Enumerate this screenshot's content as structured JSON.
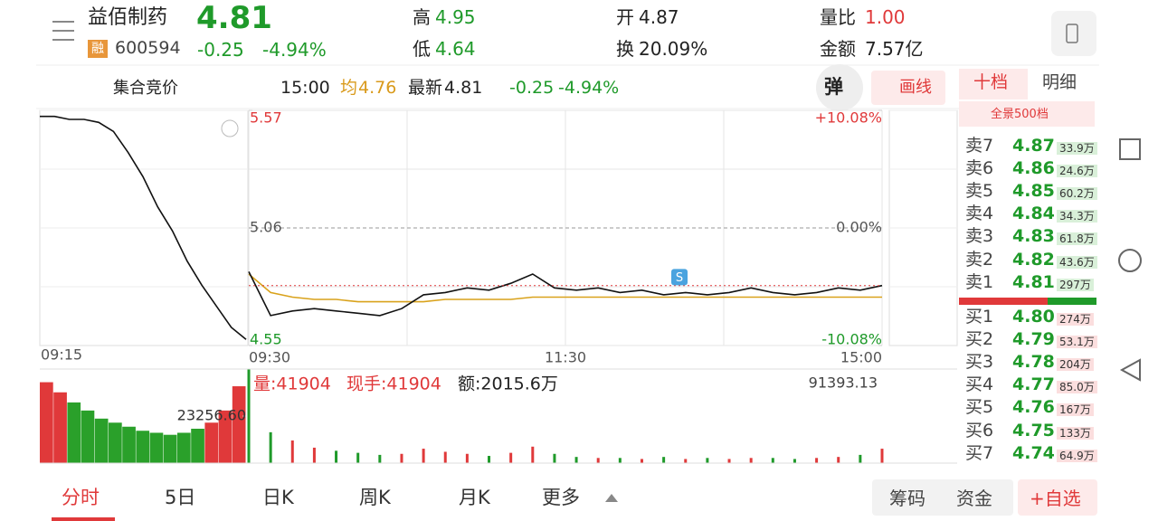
{
  "header": {
    "name": "益佰制药",
    "price": "4.81",
    "badge": "融",
    "code": "600594",
    "change": "-0.25",
    "change_pct": "-4.94%",
    "high_label": "高",
    "high": "4.95",
    "low_label": "低",
    "low": "4.64",
    "open_label": "开",
    "open": "4.87",
    "turnover_label": "换",
    "turnover": "20.09%",
    "vol_ratio_label": "量比",
    "vol_ratio": "1.00",
    "amount_label": "金额",
    "amount": "7.57亿"
  },
  "toolbar": {
    "label": "集合竞价",
    "time": "15:00",
    "avg_label": "均",
    "avg": "4.76",
    "latest_label": "最新",
    "latest": "4.81",
    "change": "-0.25",
    "change_pct": "-4.94%",
    "popup": "弹",
    "draw": "画线"
  },
  "chart_data": {
    "type": "line",
    "series": [
      {
        "name": "price",
        "color": "#111111",
        "values": [
          4.87,
          4.68,
          4.7,
          4.71,
          4.7,
          4.69,
          4.68,
          4.71,
          4.77,
          4.78,
          4.8,
          4.79,
          4.82,
          4.86,
          4.8,
          4.79,
          4.8,
          4.78,
          4.79,
          4.77,
          4.78,
          4.77,
          4.78,
          4.8,
          4.78,
          4.77,
          4.78,
          4.8,
          4.79,
          4.81
        ]
      },
      {
        "name": "avg",
        "color": "#d9a21b",
        "values": [
          4.86,
          4.78,
          4.76,
          4.75,
          4.75,
          4.74,
          4.74,
          4.74,
          4.74,
          4.75,
          4.75,
          4.75,
          4.75,
          4.76,
          4.76,
          4.76,
          4.76,
          4.76,
          4.76,
          4.76,
          4.76,
          4.76,
          4.76,
          4.76,
          4.76,
          4.76,
          4.76,
          4.76,
          4.76,
          4.76
        ]
      }
    ],
    "ylim": [
      4.55,
      5.57
    ],
    "yticks": [
      4.55,
      5.06,
      5.57
    ],
    "y2lim": [
      -10.08,
      10.08
    ],
    "y2ticks": [
      {
        "value": -10.08,
        "label": "-10.08%"
      },
      {
        "value": 0,
        "label": "0.00%"
      },
      {
        "value": 10.08,
        "label": "+10.08%"
      }
    ],
    "time_labels": [
      "09:30",
      "11:30",
      "15:00"
    ],
    "auction_time": "09:15",
    "auction": {
      "values": [
        5.6,
        5.6,
        5.59,
        5.59,
        5.58,
        5.55,
        5.48,
        5.4,
        5.3,
        5.22,
        5.12,
        5.04,
        4.97,
        4.9,
        4.86
      ],
      "ylim": [
        4.84,
        5.62
      ]
    },
    "volume": {
      "values": [
        91393,
        30000,
        22000,
        15000,
        12000,
        10000,
        8000,
        9000,
        14000,
        11000,
        9000,
        7000,
        10000,
        16000,
        9000,
        6000,
        5000,
        5000,
        4000,
        6000,
        4000,
        5000,
        4000,
        5000,
        5000,
        4000,
        5000,
        6000,
        8000,
        14000
      ],
      "ylim": [
        0,
        91393.13
      ],
      "yticks": [
        91393.13
      ]
    },
    "auction_volume": {
      "values": [
        40000,
        35000,
        30000,
        26000,
        22000,
        20000,
        18000,
        16000,
        15000,
        14000,
        15000,
        17000,
        20000,
        26000,
        38000
      ],
      "ylim": [
        0,
        46513.2
      ],
      "yticks": [
        {
          "value": 23256.6,
          "label": "23256.60"
        }
      ]
    },
    "volume_info": [
      "量:41904",
      "现手:41904",
      "额:2015.6万"
    ],
    "signal": "S"
  },
  "order_book": {
    "tabs": [
      "十档",
      "明细"
    ],
    "panorama": "全景500档",
    "sell": [
      [
        "卖7",
        "4.87",
        "33.9万"
      ],
      [
        "卖6",
        "4.86",
        "24.6万"
      ],
      [
        "卖5",
        "4.85",
        "60.2万"
      ],
      [
        "卖4",
        "4.84",
        "34.3万"
      ],
      [
        "卖3",
        "4.83",
        "61.8万"
      ],
      [
        "卖2",
        "4.82",
        "43.6万"
      ],
      [
        "卖1",
        "4.81",
        "297万"
      ]
    ],
    "buy": [
      [
        "买1",
        "4.80",
        "274万"
      ],
      [
        "买2",
        "4.79",
        "53.1万"
      ],
      [
        "买3",
        "4.78",
        "204万"
      ],
      [
        "买4",
        "4.77",
        "85.0万"
      ],
      [
        "买5",
        "4.76",
        "167万"
      ],
      [
        "买6",
        "4.75",
        "133万"
      ],
      [
        "买7",
        "4.74",
        "64.9万"
      ]
    ]
  },
  "bottom": {
    "tabs": [
      "分时",
      "5日",
      "日K",
      "周K",
      "月K",
      "更多"
    ],
    "buttons": [
      "筹码",
      "资金",
      "+自选"
    ]
  }
}
